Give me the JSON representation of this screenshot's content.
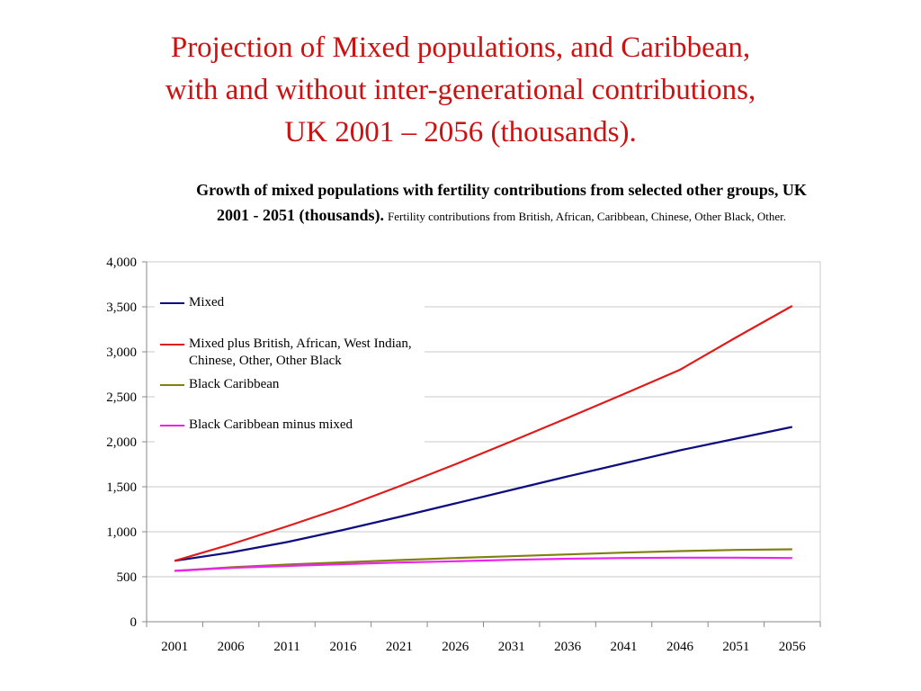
{
  "slide": {
    "title_lines": [
      "Projection of Mixed populations, and Caribbean,",
      "with and without inter-generational contributions,",
      "UK 2001 – 2056 (thousands)."
    ],
    "title_color": "#cc1111"
  },
  "chart_heading": {
    "main": "Growth of mixed populations with fertility contributions from selected other groups, UK 2001 - 2051 (thousands).",
    "sub": "Fertility contributions from British, African, Caribbean, Chinese, Other Black, Other."
  },
  "chart_data": {
    "type": "line",
    "x": [
      "2001",
      "2006",
      "2011",
      "2016",
      "2021",
      "2026",
      "2031",
      "2036",
      "2041",
      "2046",
      "2051",
      "2056"
    ],
    "ylim": [
      0,
      4000
    ],
    "yticks": [
      "0",
      "500",
      "1,000",
      "1,500",
      "2,000",
      "2,500",
      "3,000",
      "3,500",
      "4,000"
    ],
    "grid": true,
    "legend_position": "top-left",
    "series": [
      {
        "name": "Mixed",
        "color": "#0d0d80",
        "values": [
          677,
          770,
          885,
          1020,
          1165,
          1315,
          1465,
          1615,
          1760,
          1905,
          2035,
          2165
        ]
      },
      {
        "name": "Mixed plus British, African, West Indian, Chinese, Other, Other Black",
        "color": "#e01b1b",
        "values": [
          677,
          860,
          1060,
          1270,
          1505,
          1750,
          2005,
          2265,
          2530,
          2800,
          3160,
          3510
        ]
      },
      {
        "name": "Black Caribbean",
        "color": "#808010",
        "values": [
          565,
          605,
          635,
          660,
          685,
          708,
          728,
          748,
          768,
          785,
          798,
          805
        ]
      },
      {
        "name": "Black Caribbean minus mixed",
        "color": "#ee22ee",
        "values": [
          565,
          598,
          620,
          640,
          658,
          672,
          688,
          700,
          708,
          712,
          712,
          708
        ]
      }
    ]
  }
}
